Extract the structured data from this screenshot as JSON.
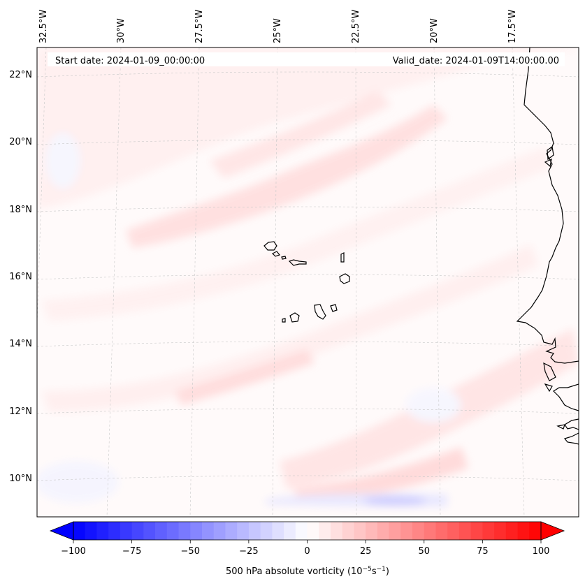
{
  "header": {
    "start_date": "Start date: 2024-01-09_00:00:00",
    "valid_date": "Valid_date: 2024-01-09T14:00:00.00"
  },
  "lon_labels": [
    "32.5°W",
    "30°W",
    "27.5°W",
    "25°W",
    "22.5°W",
    "20°W",
    "17.5°W"
  ],
  "lat_labels": [
    "22°N",
    "20°N",
    "18°N",
    "16°N",
    "14°N",
    "12°N",
    "10°N"
  ],
  "colorbar": {
    "label": "500 hPa absolute vorticity (10",
    "label_exp1": "−5",
    "label_mid": "s",
    "label_exp2": "−1",
    "label_end": ")",
    "ticks": [
      "−100",
      "−75",
      "−50",
      "−25",
      "0",
      "25",
      "50",
      "75",
      "100"
    ],
    "min": -100,
    "max": 100,
    "levels": 40,
    "colors": {
      "negative": "#0000ff",
      "zero": "#ffffff",
      "positive": "#ff0000"
    }
  },
  "colors": {
    "coast": "#000000",
    "grid": "#bbbbbb",
    "background": "#fffafa"
  }
}
